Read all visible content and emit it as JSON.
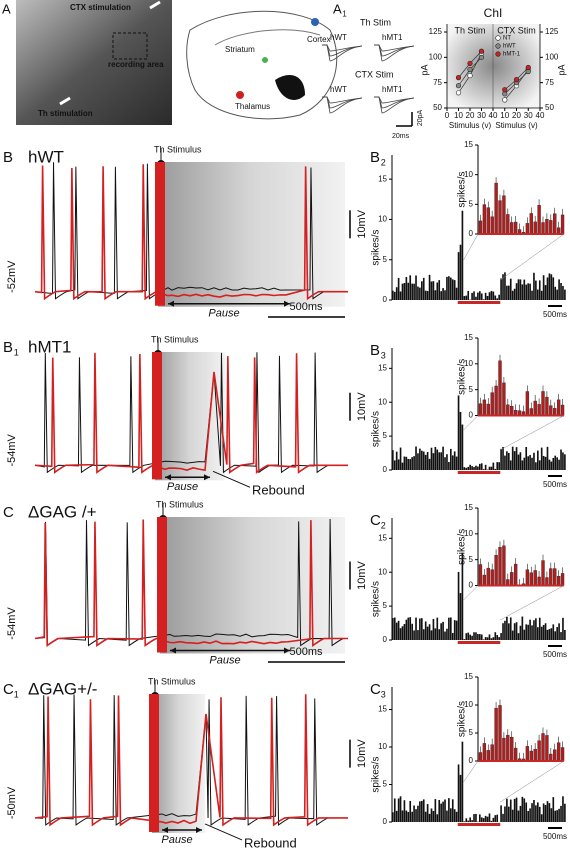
{
  "figure": {
    "A": {
      "label": "A",
      "ctx_stimulation": "CTX stimulation",
      "recording_area": "recording area",
      "th_stimulation": "Th stimulation",
      "cortex": "Cortex",
      "striatum": "Striatum",
      "thalamus": "Thalamus"
    },
    "A1": {
      "label": "A",
      "subscript": "1",
      "th_stim": "Th Stim",
      "ctx_stim": "CTX Stim",
      "th_hwt": "hWT",
      "th_hmt1": "hMT1",
      "ctx_hwt": "hWT",
      "ctx_hmt1": "hMT1",
      "scale_current": "20pA",
      "scale_time": "20ms"
    },
    "traces": [
      {
        "label": "B",
        "genotype": "hWT",
        "stimulus": "Th Stimulus",
        "potential": "-52mV",
        "scale_voltage": "10mV",
        "pause": "Pause",
        "scale_time": "500ms"
      },
      {
        "label": "B",
        "subscript": "1",
        "genotype": "hMT1",
        "stimulus": "Th Stimulus",
        "potential": "-54mV",
        "scale_voltage": "10mV",
        "pause": "Pause",
        "rebound": "Rebound"
      },
      {
        "label": "C",
        "genotype": "ΔGAG /+",
        "stimulus": "Th Stimulus",
        "potential": "-54mV",
        "scale_voltage": "10mV",
        "pause": "Pause",
        "scale_time": "500ms"
      },
      {
        "label": "C",
        "subscript": "1",
        "genotype": "ΔGAG+/-",
        "stimulus": "Th Stimulus",
        "potential": "-50mV",
        "scale_voltage": "10mV",
        "pause": "Pause",
        "rebound": "Rebound"
      }
    ],
    "histograms": [
      {
        "label": "B",
        "subscript": "2",
        "y_label": "spikes/s",
        "ylim": [
          0,
          18
        ],
        "yticks": [
          0,
          5,
          10,
          15
        ],
        "inset_y_label": "spikes/s",
        "inset_ylim": [
          0,
          15
        ],
        "inset_yticks": [
          0,
          5,
          10,
          15
        ],
        "scale_time": "500ms"
      },
      {
        "label": "B",
        "subscript": "3",
        "y_label": "spikes/s",
        "ylim": [
          0,
          18
        ],
        "yticks": [
          0,
          5,
          10,
          15
        ],
        "inset_y_label": "spikes/s",
        "inset_ylim": [
          0,
          15
        ],
        "inset_yticks": [
          0,
          5,
          10,
          15
        ],
        "scale_time": "500ms"
      },
      {
        "label": "C",
        "subscript": "2",
        "y_label": "spikes/s",
        "ylim": [
          0,
          18
        ],
        "yticks": [
          0,
          5,
          10,
          15
        ],
        "inset_y_label": "spikes/s",
        "inset_ylim": [
          0,
          15
        ],
        "inset_yticks": [
          0,
          5,
          10,
          15
        ],
        "scale_time": "500ms"
      },
      {
        "label": "C",
        "subscript": "3",
        "y_label": "spikes/s",
        "ylim": [
          0,
          18
        ],
        "yticks": [
          0,
          5,
          10,
          15
        ],
        "inset_y_label": "spikes/s",
        "inset_ylim": [
          0,
          15
        ],
        "inset_yticks": [
          0,
          5,
          10,
          15
        ],
        "scale_time": "500ms"
      }
    ]
  },
  "chart_data": [
    {
      "type": "line",
      "title": "ChI",
      "region": "Th Stim",
      "x_label": "Stimulus (v)",
      "y_label": "pA",
      "xlim": [
        0,
        40
      ],
      "xticks": [
        0,
        10,
        20,
        30,
        40
      ],
      "ylim": [
        50,
        125
      ],
      "yticks": [
        50,
        75,
        100,
        125
      ],
      "x": [
        10,
        20,
        30
      ],
      "series": [
        {
          "name": "NT",
          "color": "#ffffff",
          "values": [
            65,
            82,
            104
          ]
        },
        {
          "name": "hWT",
          "color": "#888888",
          "values": [
            72,
            88,
            100
          ]
        },
        {
          "name": "hMT-1",
          "color": "#cc2222",
          "values": [
            80,
            94,
            106
          ]
        }
      ]
    },
    {
      "type": "line",
      "region": "CTX Stim",
      "x_label": "Stimulus (v)",
      "y_label": "pA",
      "xlim": [
        0,
        40
      ],
      "xticks": [
        10,
        20,
        30,
        40
      ],
      "ylim": [
        50,
        125
      ],
      "yticks": [
        50,
        75,
        100,
        125
      ],
      "x": [
        10,
        20,
        30
      ],
      "series": [
        {
          "color": "#ffffff",
          "values": [
            58,
            72,
            88
          ]
        },
        {
          "color": "#888888",
          "values": [
            64,
            75,
            86
          ]
        },
        {
          "color": "#cc2222",
          "values": [
            68,
            78,
            90
          ]
        }
      ]
    }
  ]
}
